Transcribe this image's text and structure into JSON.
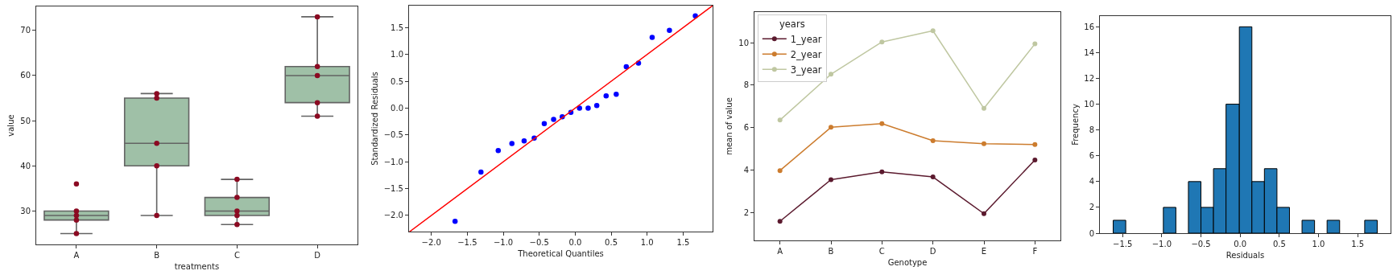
{
  "chart_data": [
    {
      "type": "box",
      "xlabel": "treatments",
      "ylabel": "value",
      "categories": [
        "A",
        "B",
        "C",
        "D"
      ],
      "ylim": [
        22.6,
        75.3
      ],
      "yticks": [
        30,
        40,
        50,
        60,
        70
      ],
      "marker": "circle",
      "series": [
        {
          "color": "#9fc0a7",
          "boxes": [
            {
              "low": 25,
              "q1": 28,
              "median": 29,
              "q3": 30,
              "high": 30
            },
            {
              "low": 29,
              "q1": 40,
              "median": 45,
              "q3": 55,
              "high": 56
            },
            {
              "low": 27,
              "q1": 29,
              "median": 30,
              "q3": 33,
              "high": 37
            },
            {
              "low": 51,
              "q1": 54,
              "median": 60,
              "q3": 62,
              "high": 73
            }
          ]
        },
        {
          "type": "scatter",
          "color": "#8b0a22",
          "x": [
            "A",
            "A",
            "A",
            "A",
            "A",
            "B",
            "B",
            "B",
            "B",
            "B",
            "C",
            "C",
            "C",
            "C",
            "C",
            "D",
            "D",
            "D",
            "D",
            "D"
          ],
          "values": [
            36,
            30,
            29,
            28,
            25,
            56,
            55,
            45,
            40,
            29,
            37,
            33,
            30,
            29,
            27,
            73,
            62,
            60,
            54,
            51
          ]
        }
      ]
    },
    {
      "type": "scatter",
      "xlabel": "Theoretical Quantiles",
      "ylabel": "Standardized Residuals",
      "xlim": [
        -2.31,
        1.91
      ],
      "ylim": [
        -2.3,
        1.91
      ],
      "xticks": [
        {
          "value": -2,
          "label": "−2.0"
        },
        {
          "value": -1.5,
          "label": "−1.5"
        },
        {
          "value": -1,
          "label": "−1.0"
        },
        {
          "value": -0.5,
          "label": "−0.5"
        },
        {
          "value": 0,
          "label": "0.0"
        },
        {
          "value": 0.5,
          "label": "0.5"
        },
        {
          "value": 1,
          "label": "1.0"
        },
        {
          "value": 1.5,
          "label": "1.5"
        }
      ],
      "yticks": [
        {
          "value": -2,
          "label": "−2.0"
        },
        {
          "value": -1.5,
          "label": "−1.5"
        },
        {
          "value": -1,
          "label": "−1.0"
        },
        {
          "value": -0.5,
          "label": "−0.5"
        },
        {
          "value": 0,
          "label": "0.0"
        },
        {
          "value": 0.5,
          "label": "0.5"
        },
        {
          "value": 1,
          "label": "1.0"
        },
        {
          "value": 1.5,
          "label": "1.5"
        }
      ],
      "marker": "circle",
      "series": [
        {
          "color": "#0000ff",
          "x": [
            -1.67,
            -1.31,
            -1.07,
            -0.88,
            -0.71,
            -0.57,
            -0.43,
            -0.3,
            -0.18,
            -0.06,
            0.06,
            0.18,
            0.3,
            0.43,
            0.57,
            0.71,
            0.88,
            1.07,
            1.31,
            1.67
          ],
          "values": [
            -2.11,
            -1.19,
            -0.79,
            -0.66,
            -0.61,
            -0.56,
            -0.29,
            -0.21,
            -0.16,
            -0.08,
            0.0,
            0.0,
            0.05,
            0.23,
            0.26,
            0.77,
            0.84,
            1.32,
            1.45,
            1.72
          ]
        },
        {
          "type": "line",
          "color": "#ff0000",
          "marker": "none",
          "x": [
            -2.3,
            1.91
          ],
          "values": [
            -2.3,
            1.91
          ]
        }
      ]
    },
    {
      "type": "line",
      "xlabel": "Genotype",
      "ylabel": "mean of value",
      "categories": [
        "A",
        "B",
        "C",
        "D",
        "E",
        "F"
      ],
      "ylim": [
        0.68,
        11.44
      ],
      "yticks": [
        2,
        4,
        6,
        8,
        10
      ],
      "marker": "circle",
      "legend": "top left",
      "legend_title": "years",
      "series": [
        {
          "name": "1_year",
          "color": "#5b1a2e",
          "values": [
            1.58,
            3.54,
            3.91,
            3.67,
            1.94,
            4.47
          ]
        },
        {
          "name": "2_year",
          "color": "#cc7c2e",
          "values": [
            3.97,
            6.01,
            6.18,
            5.38,
            5.24,
            5.2
          ]
        },
        {
          "name": "3_year",
          "color": "#bfc7a1",
          "values": [
            6.35,
            8.51,
            10.03,
            10.56,
            6.9,
            9.94
          ]
        }
      ]
    },
    {
      "type": "histogram",
      "xlabel": "Residuals",
      "ylabel": "Frequency",
      "color": "#1f77b4",
      "bins": [
        -1.62,
        -1.46,
        -0.98,
        -0.82,
        -0.66,
        -0.5,
        -0.34,
        -0.18,
        -0.01,
        0.15,
        0.31,
        0.47,
        0.63,
        0.79,
        0.95,
        1.11,
        1.27,
        1.59,
        1.75
      ],
      "values": [
        1,
        0,
        2,
        0,
        4,
        2,
        5,
        10,
        16,
        4,
        5,
        2,
        0,
        1,
        0,
        1,
        0,
        1
      ],
      "xlim": [
        -1.79,
        1.92
      ],
      "xticks": [
        {
          "value": -1.5,
          "label": "−1.5"
        },
        {
          "value": -1,
          "label": "−1.0"
        },
        {
          "value": -0.5,
          "label": "−0.5"
        },
        {
          "value": 0,
          "label": "0.0"
        },
        {
          "value": 0.5,
          "label": "0.5"
        },
        {
          "value": 1,
          "label": "1.0"
        },
        {
          "value": 1.5,
          "label": "1.5"
        }
      ],
      "ylim": [
        0,
        16.83
      ],
      "yticks": [
        0,
        2,
        4,
        6,
        8,
        10,
        12,
        14,
        16
      ]
    }
  ]
}
